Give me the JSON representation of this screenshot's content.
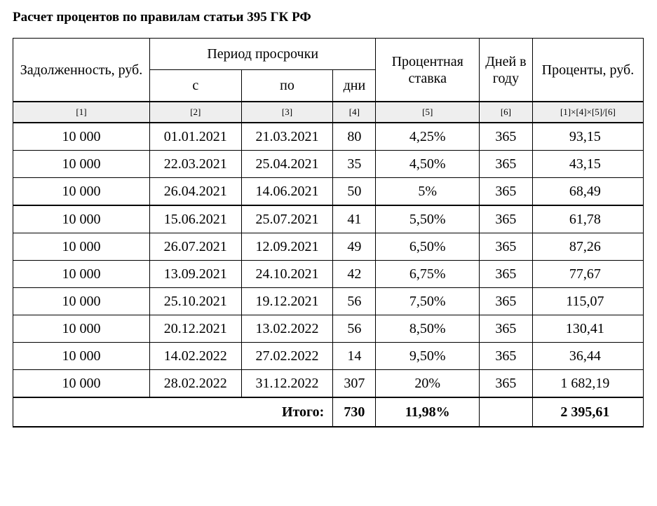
{
  "title": "Расчет процентов по правилам статьи 395 ГК РФ",
  "headers": {
    "debt": "Задолженность, руб.",
    "period": "Период просрочки",
    "from": "с",
    "to": "по",
    "days": "дни",
    "rate": "Процентная ставка",
    "yearDays": "Дней в году",
    "interest": "Проценты, руб."
  },
  "refs": {
    "c1": "[1]",
    "c2": "[2]",
    "c3": "[3]",
    "c4": "[4]",
    "c5": "[5]",
    "c6": "[6]",
    "c7": "[1]×[4]×[5]/[6]"
  },
  "rows": [
    {
      "debt": "10 000",
      "from": "01.01.2021",
      "to": "21.03.2021",
      "days": "80",
      "rate": "4,25%",
      "year": "365",
      "interest": "93,15"
    },
    {
      "debt": "10 000",
      "from": "22.03.2021",
      "to": "25.04.2021",
      "days": "35",
      "rate": "4,50%",
      "year": "365",
      "interest": "43,15"
    },
    {
      "debt": "10 000",
      "from": "26.04.2021",
      "to": "14.06.2021",
      "days": "50",
      "rate": "5%",
      "year": "365",
      "interest": "68,49"
    },
    {
      "debt": "10 000",
      "from": "15.06.2021",
      "to": "25.07.2021",
      "days": "41",
      "rate": "5,50%",
      "year": "365",
      "interest": "61,78"
    },
    {
      "debt": "10 000",
      "from": "26.07.2021",
      "to": "12.09.2021",
      "days": "49",
      "rate": "6,50%",
      "year": "365",
      "interest": "87,26"
    },
    {
      "debt": "10 000",
      "from": "13.09.2021",
      "to": "24.10.2021",
      "days": "42",
      "rate": "6,75%",
      "year": "365",
      "interest": "77,67"
    },
    {
      "debt": "10 000",
      "from": "25.10.2021",
      "to": "19.12.2021",
      "days": "56",
      "rate": "7,50%",
      "year": "365",
      "interest": "115,07"
    },
    {
      "debt": "10 000",
      "from": "20.12.2021",
      "to": "13.02.2022",
      "days": "56",
      "rate": "8,50%",
      "year": "365",
      "interest": "130,41"
    },
    {
      "debt": "10 000",
      "from": "14.02.2022",
      "to": "27.02.2022",
      "days": "14",
      "rate": "9,50%",
      "year": "365",
      "interest": "36,44"
    },
    {
      "debt": "10 000",
      "from": "28.02.2022",
      "to": "31.12.2022",
      "days": "307",
      "rate": "20%",
      "year": "365",
      "interest": "1 682,19"
    }
  ],
  "totals": {
    "label": "Итого:",
    "days": "730",
    "rate": "11,98%",
    "year": "",
    "interest": "2 395,61"
  },
  "style": {
    "separatorAfterRow": 3,
    "background": "#ffffff",
    "refBg": "#eeeeee",
    "border": "#000000",
    "bodyFontSize": 20,
    "refFontSize": 13,
    "titleFontSize": 19
  }
}
